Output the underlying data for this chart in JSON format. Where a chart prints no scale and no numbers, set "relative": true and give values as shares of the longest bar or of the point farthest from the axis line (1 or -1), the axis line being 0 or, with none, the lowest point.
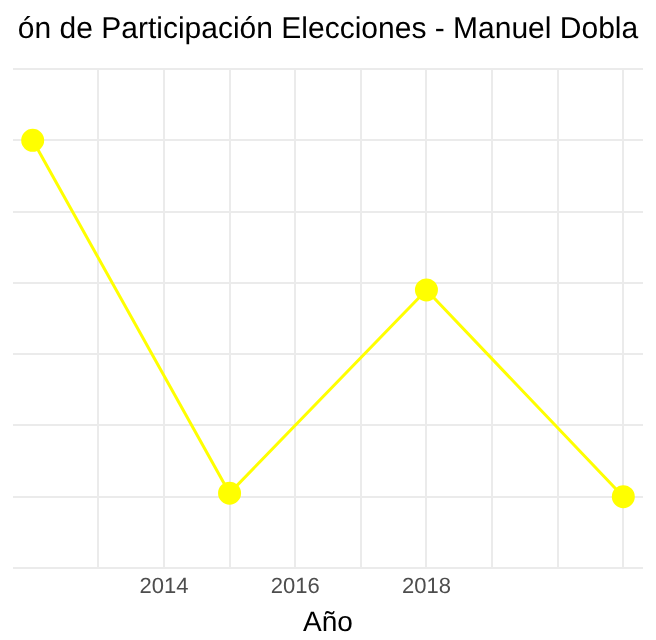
{
  "chart_data": {
    "type": "line",
    "title": "ón de Participación Elecciones - Manuel Dobla",
    "xlabel": "Año",
    "x": [
      2012,
      2015,
      2018,
      2021
    ],
    "series": [
      {
        "color": "#ffff00",
        "values": [
          1.0,
          0.01,
          0.58,
          0.0
        ]
      }
    ],
    "relative": true,
    "xlim": [
      2011.7,
      2021.3
    ],
    "xticks": [
      {
        "value": 2013,
        "label": null
      },
      2014,
      {
        "value": 2015,
        "label": null
      },
      2016,
      {
        "value": 2017,
        "label": null
      },
      2018,
      {
        "value": 2019,
        "label": null
      },
      {
        "value": 2020,
        "label": null
      },
      {
        "value": 2021,
        "label": null
      }
    ],
    "grid": true,
    "marker": "circle",
    "line_style": "solid",
    "legend": false
  }
}
